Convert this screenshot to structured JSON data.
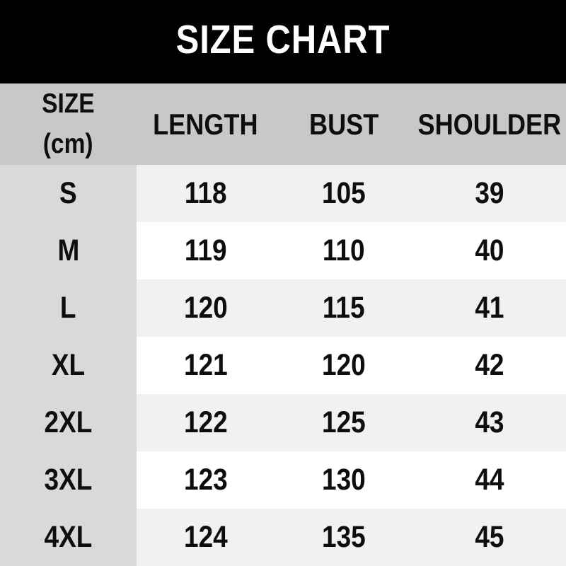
{
  "title": "SIZE CHART",
  "colors": {
    "black_bar": "#010101",
    "header_bg": "#c8c8c8",
    "side_col_bg": "#d9d9d9",
    "stripe_bg": "#f1f1f1",
    "row_bg": "#ffffff",
    "title_color": "#ffffff",
    "text_color": "#0e0e0e"
  },
  "table": {
    "header": {
      "size_label": "SIZE",
      "size_unit": "(cm)",
      "columns": [
        "LENGTH",
        "BUST",
        "SHOULDER"
      ]
    },
    "rows": [
      {
        "size": "S",
        "length": "118",
        "bust": "105",
        "shoulder": "39"
      },
      {
        "size": "M",
        "length": "119",
        "bust": "110",
        "shoulder": "40"
      },
      {
        "size": "L",
        "length": "120",
        "bust": "115",
        "shoulder": "41"
      },
      {
        "size": "XL",
        "length": "121",
        "bust": "120",
        "shoulder": "42"
      },
      {
        "size": "2XL",
        "length": "122",
        "bust": "125",
        "shoulder": "43"
      },
      {
        "size": "3XL",
        "length": "123",
        "bust": "130",
        "shoulder": "44"
      },
      {
        "size": "4XL",
        "length": "124",
        "bust": "135",
        "shoulder": "45"
      }
    ]
  },
  "chart_data": {
    "type": "table",
    "title": "SIZE CHART",
    "unit": "cm",
    "columns": [
      "SIZE (cm)",
      "LENGTH",
      "BUST",
      "SHOULDER"
    ],
    "rows": [
      [
        "S",
        118,
        105,
        39
      ],
      [
        "M",
        119,
        110,
        40
      ],
      [
        "L",
        120,
        115,
        41
      ],
      [
        "XL",
        121,
        120,
        42
      ],
      [
        "2XL",
        122,
        125,
        43
      ],
      [
        "3XL",
        123,
        130,
        44
      ],
      [
        "4XL",
        124,
        135,
        45
      ]
    ]
  }
}
